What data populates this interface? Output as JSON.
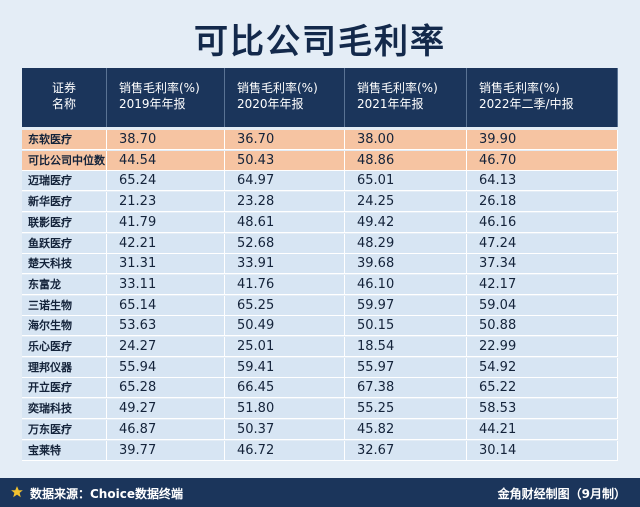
{
  "header": {
    "title": "可比公司毛利率"
  },
  "table": {
    "columns": [
      [
        "证券",
        "名称"
      ],
      [
        "销售毛利率(%)",
        "2019年年报"
      ],
      [
        "销售毛利率(%)",
        "2020年年报"
      ],
      [
        "销售毛利率(%)",
        "2021年年报"
      ],
      [
        "销售毛利率(%)",
        "2022年二季/中报"
      ]
    ],
    "rows": [
      [
        "东软医疗",
        "38.70",
        "36.70",
        "38.00",
        "39.90"
      ],
      [
        "可比公司中位数",
        "44.54",
        "50.43",
        "48.86",
        "46.70"
      ],
      [
        "迈瑞医疗",
        "65.24",
        "64.97",
        "65.01",
        "64.13"
      ],
      [
        "新华医疗",
        "21.23",
        "23.28",
        "24.25",
        "26.18"
      ],
      [
        "联影医疗",
        "41.79",
        "48.61",
        "49.42",
        "46.16"
      ],
      [
        "鱼跃医疗",
        "42.21",
        "52.68",
        "48.29",
        "47.24"
      ],
      [
        "楚天科技",
        "31.31",
        "33.91",
        "39.68",
        "37.34"
      ],
      [
        "东富龙",
        "33.11",
        "41.76",
        "46.10",
        "42.17"
      ],
      [
        "三诺生物",
        "65.14",
        "65.25",
        "59.97",
        "59.04"
      ],
      [
        "海尔生物",
        "53.63",
        "50.49",
        "50.15",
        "50.88"
      ],
      [
        "乐心医疗",
        "24.27",
        "25.01",
        "18.54",
        "22.99"
      ],
      [
        "理邦仪器",
        "55.94",
        "59.41",
        "55.97",
        "54.92"
      ],
      [
        "开立医疗",
        "65.28",
        "66.45",
        "67.38",
        "65.22"
      ],
      [
        "奕瑞科技",
        "49.27",
        "51.80",
        "55.25",
        "58.53"
      ],
      [
        "万东医疗",
        "46.87",
        "50.37",
        "45.82",
        "44.21"
      ],
      [
        "宝莱特",
        "39.77",
        "46.72",
        "32.67",
        "30.14"
      ]
    ]
  },
  "footer": {
    "source": "数据来源：Choice数据终端",
    "credit": "金角财经制图（9月制）"
  }
}
